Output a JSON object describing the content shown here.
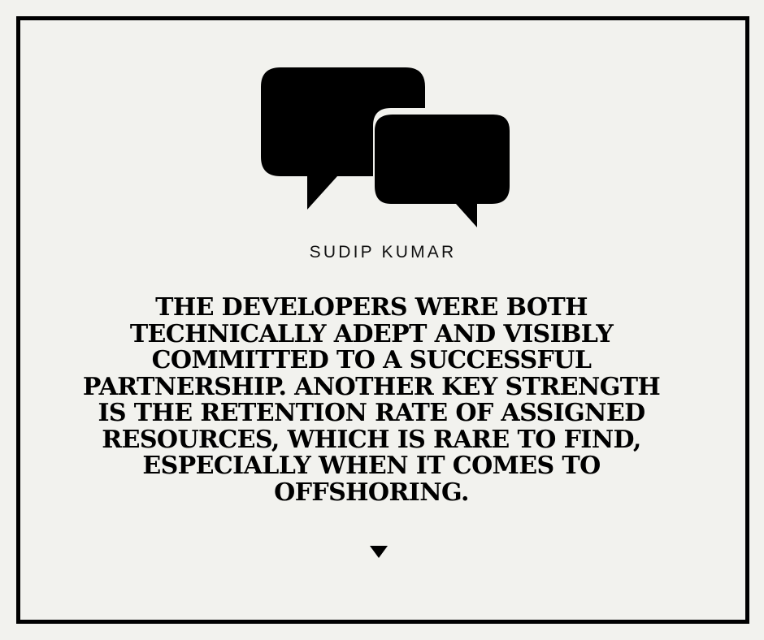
{
  "card": {
    "icon": "speech-bubbles-icon",
    "author": "SUDIP KUMAR",
    "quote": "THE DEVELOPERS WERE BOTH TECHNICALLY ADEPT AND VISIBLY COMMITTED TO A SUCCESSFUL PARTNERSHIP. ANOTHER KEY STRENGTH IS THE RETENTION RATE OF ASSIGNED RESOURCES, WHICH IS RARE TO FIND, ESPECIALLY WHEN IT COMES TO OFFSHORING.",
    "down_icon": "caret-down-icon"
  },
  "colors": {
    "background": "#f2f2ee",
    "border": "#000000",
    "text": "#000000"
  }
}
